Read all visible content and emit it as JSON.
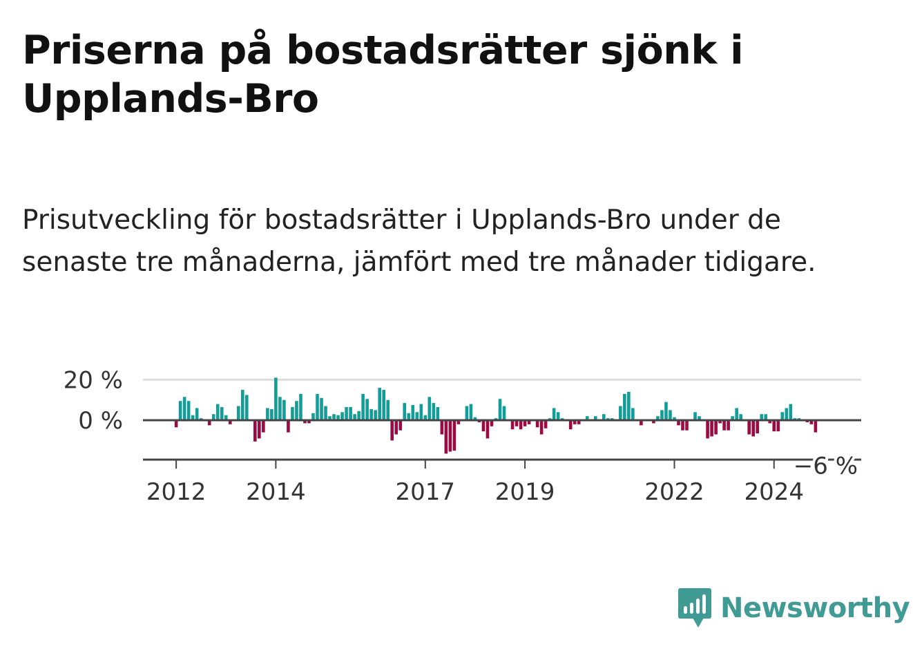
{
  "title": "Priserna på bostadsrätter sjönk i Upplands-Bro",
  "subtitle": "Prisutveckling för bostadsrätter i Upplands-Bro under de senaste tre månaderna, jämfört med tre månader tidigare.",
  "brand": {
    "name": "Newsworthy",
    "color": "#3f9b94",
    "icon": "newsworthy-chart-bubble-icon"
  },
  "colors": {
    "positive": "#129e98",
    "negative": "#9c0a43",
    "grid": "#dddddd",
    "axis": "#444444"
  },
  "chart_data": {
    "type": "bar",
    "title": "Priserna på bostadsrätter sjönk i Upplands-Bro",
    "xlabel": "",
    "ylabel": "",
    "unit": "%",
    "ylim": [
      -19,
      22
    ],
    "yticks": [
      0,
      20
    ],
    "ytick_labels": [
      "0 %",
      "20 %"
    ],
    "x_range": [
      2011.333,
      2025.75
    ],
    "xticks": [
      2012,
      2014,
      2017,
      2019,
      2022,
      2024
    ],
    "xtick_labels": [
      "2012",
      "2014",
      "2017",
      "2019",
      "2022",
      "2024"
    ],
    "last_value_label": "−6 %",
    "start": "2012-01",
    "values": [
      -3.5,
      9.5,
      11.5,
      9.5,
      2.5,
      6,
      1,
      0.5,
      -2.5,
      3,
      8,
      6.5,
      2.5,
      -2,
      0.5,
      7,
      15,
      12.5,
      0.5,
      -10.5,
      -9,
      -6,
      6,
      5.5,
      21,
      11.5,
      10,
      -6,
      6.5,
      9.5,
      13,
      -1.5,
      -1.5,
      3.5,
      13,
      11,
      7,
      2,
      3,
      2.5,
      4,
      6.5,
      6.5,
      3,
      4.5,
      13,
      10.5,
      5.5,
      5,
      16,
      15,
      10,
      -10,
      -7,
      -5,
      8.5,
      3.5,
      7.5,
      4,
      8,
      2.5,
      11.5,
      8.5,
      6.5,
      -7,
      -16.5,
      -15.5,
      -15,
      -2,
      0,
      7,
      8,
      1.5,
      -1,
      -5.5,
      -9,
      -3,
      1,
      10.5,
      7,
      0.5,
      -4.5,
      -3,
      -4.5,
      -3,
      -2,
      0.5,
      -3.5,
      -7,
      -4,
      1,
      6,
      4,
      1,
      -0.5,
      -4.5,
      -2,
      -2,
      0.5,
      2,
      0.5,
      2,
      0.5,
      3,
      1,
      1,
      -0.5,
      7,
      13,
      14,
      6,
      0.5,
      -2.5,
      -0.5,
      -0.5,
      -1.5,
      2,
      5,
      9,
      5,
      1.5,
      -2.5,
      -5,
      -5,
      0.5,
      4,
      2,
      0.5,
      -9,
      -8,
      -7,
      -1.5,
      -5,
      -5,
      2,
      6,
      3,
      0.5,
      -7,
      -8,
      -6.5,
      3,
      3,
      -1.5,
      -5.5,
      -5.5,
      4,
      6,
      8,
      1,
      1,
      0.5,
      -1,
      -2,
      -6
    ]
  }
}
